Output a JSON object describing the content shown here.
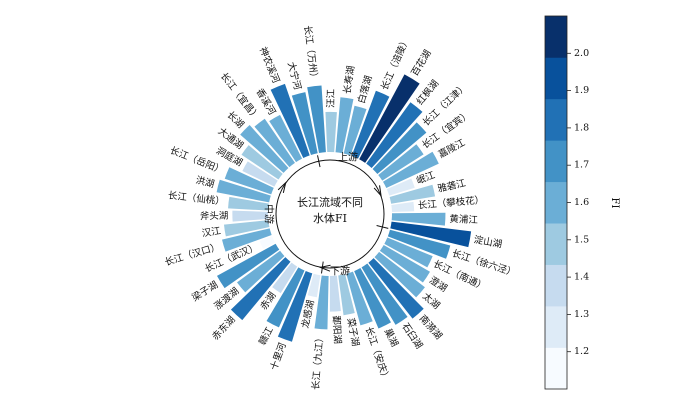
{
  "chart_data": {
    "type": "bar",
    "polar": true,
    "center_title_lines": [
      "长江流域不同",
      "水体FI"
    ],
    "segment_labels": [
      "上游",
      "下游",
      "中游"
    ],
    "categories": [
      "长江（万州）",
      "汪江",
      "长寿湖",
      "白落湖",
      "长江（涪陵）",
      "百花湖",
      "红枫湖",
      "长江（江津）",
      "长江（宜宾）",
      "嘉陵江",
      "岷江",
      "雅砻江",
      "长江（攀枝花）",
      "黄浦江",
      "淀山湖",
      "长江（徐六泾）",
      "长江（南通）",
      "澄湖",
      "太湖",
      "南漪湖",
      "石臼湖",
      "巢湖",
      "长江（安庆）",
      "菜子湖",
      "鄱阳湖",
      "长江（九江）",
      "龙感湖",
      "十里河",
      "赣江",
      "赤湖",
      "赤东湖",
      "涨渡湖",
      "梁子湖",
      "长江（武汉）",
      "长江（汉口）",
      "汉江",
      "斧头湖",
      "长江（仙桃）",
      "洪湖",
      "长江（岳阳）",
      "洞庭湖",
      "大通湖",
      "长湖",
      "长江（宜昌）",
      "香溪河",
      "神农溪河",
      "大宁河"
    ],
    "values": [
      1.75,
      1.45,
      1.62,
      1.55,
      1.78,
      2.08,
      1.85,
      1.72,
      1.55,
      1.65,
      1.3,
      1.5,
      1.25,
      1.6,
      1.9,
      1.7,
      1.55,
      1.6,
      1.65,
      1.8,
      1.75,
      1.7,
      1.6,
      1.45,
      1.4,
      1.6,
      1.25,
      1.8,
      1.7,
      1.35,
      1.85,
      1.6,
      1.75,
      1.15,
      1.55,
      1.5,
      1.4,
      1.45,
      1.6,
      1.55,
      1.4,
      1.5,
      1.65,
      1.6,
      1.55,
      1.85,
      1.7
    ],
    "colorbar": {
      "label": "FI",
      "range": [
        1.1,
        2.1
      ],
      "ticks": [
        1.2,
        1.3,
        1.4,
        1.5,
        1.6,
        1.7,
        1.8,
        1.9,
        2.0
      ],
      "tick_labels": [
        "1.2",
        "1.3",
        "1.4",
        "1.5",
        "1.6",
        "1.7",
        "1.8",
        "1.9",
        "2.0"
      ],
      "colormap": "Blues",
      "colors": [
        "#f7fbff",
        "#deebf7",
        "#c6dbef",
        "#9ecae1",
        "#6baed6",
        "#4292c6",
        "#2171b5",
        "#08519c",
        "#08306b"
      ]
    }
  }
}
